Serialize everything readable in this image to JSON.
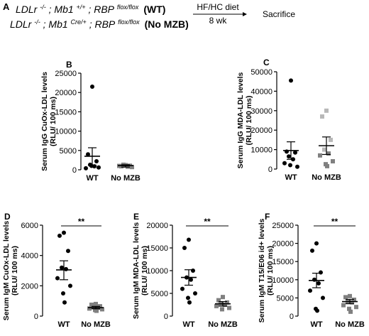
{
  "panel_a": {
    "letter": "A",
    "wt_line": {
      "base": "LDLr",
      "sup1": "-/-",
      "mid1": "; Mb1",
      "sup2": "+/+",
      "mid2": " ; RBP",
      "sup3": "flox/flox",
      "group": "(WT)"
    },
    "mzb_line": {
      "base": "LDLr",
      "sup1": "-/-",
      "mid1": "; Mb1",
      "sup2": "Cre/+",
      "mid2": " ; RBP",
      "sup3": "flox/flox",
      "group": "(No MZB)"
    },
    "diet_label": "HF/HC diet",
    "duration_label": "8 wk",
    "endpoint_label": "Sacrifice"
  },
  "significance_label": "**",
  "colors": {
    "wt": "#000000",
    "no_mzb": "#808080",
    "no_mzb_light": "#b8b8b8",
    "axis": "#000000"
  },
  "chart_data": [
    {
      "id": "B",
      "type": "scatter",
      "letter": "B",
      "ylabel_lines": [
        "Serum IgG CuOx-LDL levels",
        "(RLU/ 100 ms)"
      ],
      "categories": [
        "WT",
        "No MZB"
      ],
      "ylim": [
        0,
        25000
      ],
      "yticks": [
        0,
        5000,
        10000,
        15000,
        20000,
        25000
      ],
      "yticklabels": [
        "0",
        "5000",
        "10000",
        "15000",
        "20000",
        "25000"
      ],
      "significance": "",
      "series": [
        {
          "category": "WT",
          "mean": 3500,
          "sem_low": 1200,
          "sem_high": 5700,
          "points": [
            21500,
            4000,
            2200,
            1300,
            900,
            400,
            600,
            1000
          ]
        },
        {
          "category": "No MZB",
          "mean": 1100,
          "sem_low": 700,
          "sem_high": 1300,
          "points": [
            1200,
            900,
            1050,
            1300,
            800,
            1000,
            700,
            1100
          ]
        }
      ]
    },
    {
      "id": "C",
      "type": "scatter",
      "letter": "C",
      "ylabel_lines": [
        "Serum IgG MDA-LDL levels",
        "(RLU/ 100 ms)"
      ],
      "categories": [
        "WT",
        "No MZB"
      ],
      "ylim": [
        0,
        50000
      ],
      "yticks": [
        0,
        10000,
        20000,
        30000,
        40000,
        50000
      ],
      "yticklabels": [
        "0",
        "10000",
        "20000",
        "30000",
        "40000",
        "50000"
      ],
      "significance": "",
      "series": [
        {
          "category": "WT",
          "mean": 9500,
          "sem_low": 5000,
          "sem_high": 14000,
          "points": [
            45500,
            9000,
            8500,
            6500,
            5000,
            3000,
            1200,
            2000
          ]
        },
        {
          "category": "No MZB",
          "mean": 12000,
          "sem_low": 7500,
          "sem_high": 16500,
          "points": [
            30000,
            27000,
            15000,
            10000,
            8000,
            7000,
            4000,
            2500,
            1500
          ]
        }
      ]
    },
    {
      "id": "D",
      "type": "scatter",
      "letter": "D",
      "ylabel_lines": [
        "Serum IgM CuOx-LDL levels",
        "(RLU/ 100 ms)"
      ],
      "categories": [
        "WT",
        "No MZB"
      ],
      "ylim": [
        0,
        6000
      ],
      "yticks": [
        0,
        2000,
        4000,
        6000
      ],
      "yticklabels": [
        "0",
        "2000",
        "4000",
        "6000"
      ],
      "significance": "**",
      "series": [
        {
          "category": "WT",
          "mean": 3050,
          "sem_low": 2400,
          "sem_high": 3650,
          "points": [
            5500,
            5300,
            4300,
            3200,
            3100,
            2500,
            2000,
            1500,
            900
          ]
        },
        {
          "category": "No MZB",
          "mean": 560,
          "sem_low": 480,
          "sem_high": 640,
          "points": [
            800,
            750,
            650,
            600,
            550,
            500,
            450,
            400,
            350
          ]
        }
      ]
    },
    {
      "id": "E",
      "type": "scatter",
      "letter": "E",
      "ylabel_lines": [
        "Serum IgM MDA-LDL levels",
        "(RLU/ 100 ms)"
      ],
      "categories": [
        "WT",
        "No MZB"
      ],
      "ylim": [
        0,
        20000
      ],
      "yticks": [
        0,
        5000,
        10000,
        15000,
        20000
      ],
      "yticklabels": [
        "0",
        "5000",
        "10000",
        "15000",
        "20000"
      ],
      "significance": "**",
      "series": [
        {
          "category": "WT",
          "mean": 8500,
          "sem_low": 6800,
          "sem_high": 10200,
          "points": [
            16800,
            15000,
            10000,
            8500,
            8000,
            6000,
            5000,
            4000,
            3000
          ]
        },
        {
          "category": "No MZB",
          "mean": 2700,
          "sem_low": 2200,
          "sem_high": 3200,
          "points": [
            4200,
            3500,
            3000,
            2800,
            2500,
            2200,
            1800,
            1500
          ]
        }
      ]
    },
    {
      "id": "F",
      "type": "scatter",
      "letter": "F",
      "ylabel_lines": [
        "Serum IgM T15/E06 id+ levels",
        "(RLU/ 100 ms)"
      ],
      "categories": [
        "WT",
        "No MZB"
      ],
      "ylim": [
        0,
        25000
      ],
      "yticks": [
        0,
        5000,
        10000,
        15000,
        20000,
        25000
      ],
      "yticklabels": [
        "0",
        "5000",
        "10000",
        "15000",
        "20000",
        "25000"
      ],
      "significance": "**",
      "series": [
        {
          "category": "WT",
          "mean": 9800,
          "sem_low": 7800,
          "sem_high": 11800,
          "points": [
            20000,
            18000,
            12000,
            10000,
            9000,
            7000,
            5000,
            2000,
            1500
          ]
        },
        {
          "category": "No MZB",
          "mean": 4000,
          "sem_low": 3400,
          "sem_high": 4600,
          "points": [
            5500,
            5200,
            4500,
            4000,
            3800,
            3000,
            2500,
            2000,
            1200
          ]
        }
      ]
    }
  ]
}
